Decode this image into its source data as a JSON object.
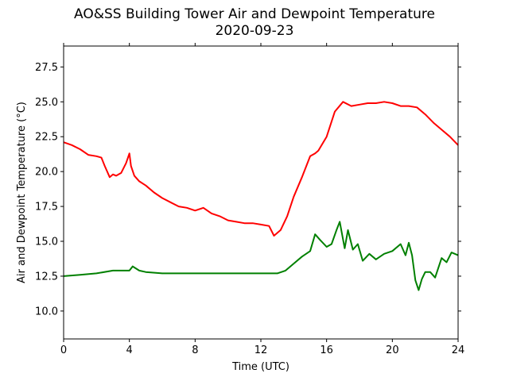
{
  "chart_data": {
    "type": "line",
    "title": "AO&SS Building Tower Air and Dewpoint Temperature",
    "subtitle": "2020-09-23",
    "xlabel": "Time (UTC)",
    "ylabel": "Air and Dewpoint Temperature (°C)",
    "xlim": [
      0,
      24
    ],
    "ylim": [
      8,
      29
    ],
    "xticks": [
      0,
      4,
      8,
      12,
      16,
      20,
      24
    ],
    "xtick_labels": [
      "0",
      "4",
      "8",
      "12",
      "16",
      "20",
      "24"
    ],
    "yticks": [
      10.0,
      12.5,
      15.0,
      17.5,
      20.0,
      22.5,
      25.0,
      27.5
    ],
    "ytick_labels": [
      "10.0",
      "12.5",
      "15.0",
      "17.5",
      "20.0",
      "22.5",
      "25.0",
      "27.5"
    ],
    "grid": false,
    "series": [
      {
        "color": "#ff0000",
        "x": [
          0,
          0.5,
          1,
          1.5,
          2,
          2.3,
          2.5,
          2.8,
          3,
          3.2,
          3.5,
          3.8,
          4,
          4.1,
          4.3,
          4.6,
          5,
          5.5,
          6,
          6.5,
          7,
          7.5,
          8,
          8.5,
          9,
          9.5,
          10,
          10.5,
          11,
          11.5,
          12,
          12.5,
          12.8,
          13.2,
          13.6,
          14,
          14.5,
          15,
          15.3,
          15.5,
          16,
          16.5,
          17,
          17.5,
          18,
          18.5,
          19,
          19.5,
          20,
          20.5,
          21,
          21.5,
          22,
          22.5,
          23,
          23.5,
          24
        ],
        "values": [
          22.1,
          21.9,
          21.6,
          21.2,
          21.1,
          21.0,
          20.4,
          19.6,
          19.8,
          19.7,
          19.9,
          20.6,
          21.3,
          20.4,
          19.7,
          19.3,
          19.0,
          18.5,
          18.1,
          17.8,
          17.5,
          17.4,
          17.2,
          17.4,
          17.0,
          16.8,
          16.5,
          16.4,
          16.3,
          16.3,
          16.2,
          16.1,
          15.4,
          15.8,
          16.8,
          18.2,
          19.6,
          21.1,
          21.3,
          21.5,
          22.5,
          24.3,
          25.0,
          24.7,
          24.8,
          24.9,
          24.9,
          25.0,
          24.9,
          24.7,
          24.7,
          24.6,
          24.1,
          23.5,
          23.0,
          22.5,
          21.9
        ]
      },
      {
        "color": "#008000",
        "x": [
          0,
          1,
          2,
          3,
          3.5,
          4,
          4.2,
          4.6,
          5,
          6,
          7,
          8,
          9,
          10,
          11,
          12,
          13,
          13.5,
          14,
          14.5,
          15,
          15.3,
          15.6,
          16,
          16.3,
          16.6,
          16.8,
          17.1,
          17.3,
          17.6,
          17.9,
          18.2,
          18.6,
          19,
          19.5,
          20,
          20.5,
          20.8,
          21,
          21.2,
          21.4,
          21.6,
          21.8,
          22,
          22.3,
          22.6,
          23,
          23.3,
          23.6,
          24
        ],
        "values": [
          12.5,
          12.6,
          12.7,
          12.9,
          12.9,
          12.9,
          13.2,
          12.9,
          12.8,
          12.7,
          12.7,
          12.7,
          12.7,
          12.7,
          12.7,
          12.7,
          12.7,
          12.9,
          13.4,
          13.9,
          14.3,
          15.5,
          15.1,
          14.6,
          14.8,
          15.8,
          16.4,
          14.5,
          15.8,
          14.4,
          14.8,
          13.6,
          14.1,
          13.7,
          14.1,
          14.3,
          14.8,
          14.0,
          14.9,
          14.0,
          12.2,
          11.5,
          12.3,
          12.8,
          12.8,
          12.4,
          13.8,
          13.5,
          14.2,
          14.0
        ]
      }
    ]
  }
}
